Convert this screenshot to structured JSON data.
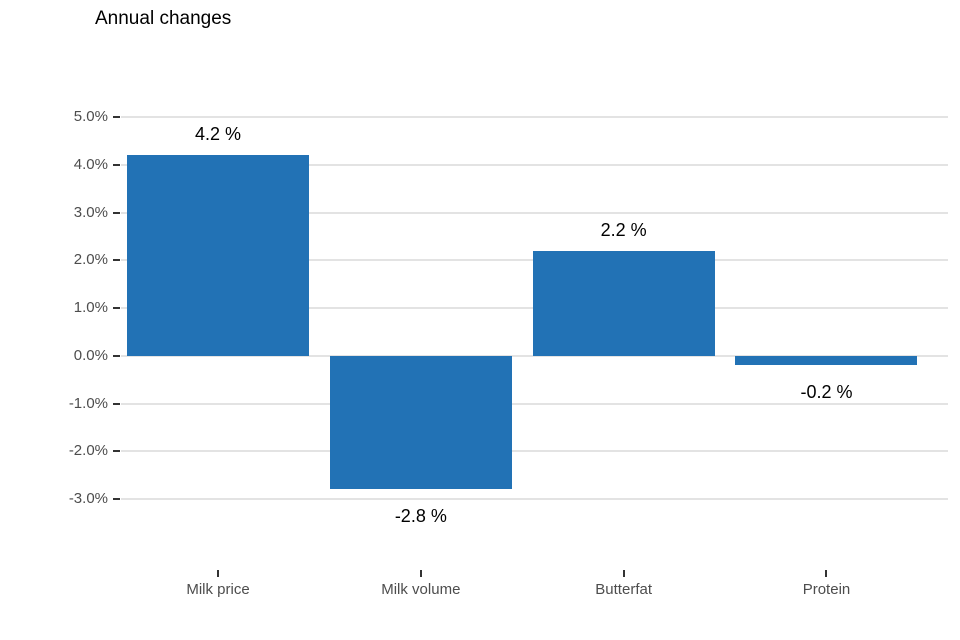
{
  "title": "Annual changes",
  "chart_data": {
    "type": "bar",
    "title": "Annual changes",
    "xlabel": "",
    "ylabel": "",
    "categories": [
      "Milk price",
      "Milk volume",
      "Butterfat",
      "Protein"
    ],
    "values": [
      4.2,
      -2.8,
      2.2,
      -0.2
    ],
    "value_labels": [
      "4.2 %",
      "-2.8 %",
      "2.2 %",
      "-0.2 %"
    ],
    "y_ticks": [
      5,
      4,
      3,
      2,
      1,
      0,
      -1,
      -2,
      -3
    ],
    "y_tick_labels": [
      "5.0%",
      "4.0%",
      "3.0%",
      "2.0%",
      "1.0%",
      "0.0%",
      "-1.0%",
      "-2.0%",
      "-3.0%"
    ],
    "ylim": [
      -3,
      5
    ],
    "grid": "horizontal-only",
    "legend": "none",
    "colors": {
      "bar": "#2272b5",
      "gridline": "#e3e3e3",
      "tick": "#333333",
      "axis_text": "#4d4d4d",
      "value_label": "#000000",
      "title": "#000000",
      "background": "#ffffff"
    }
  }
}
